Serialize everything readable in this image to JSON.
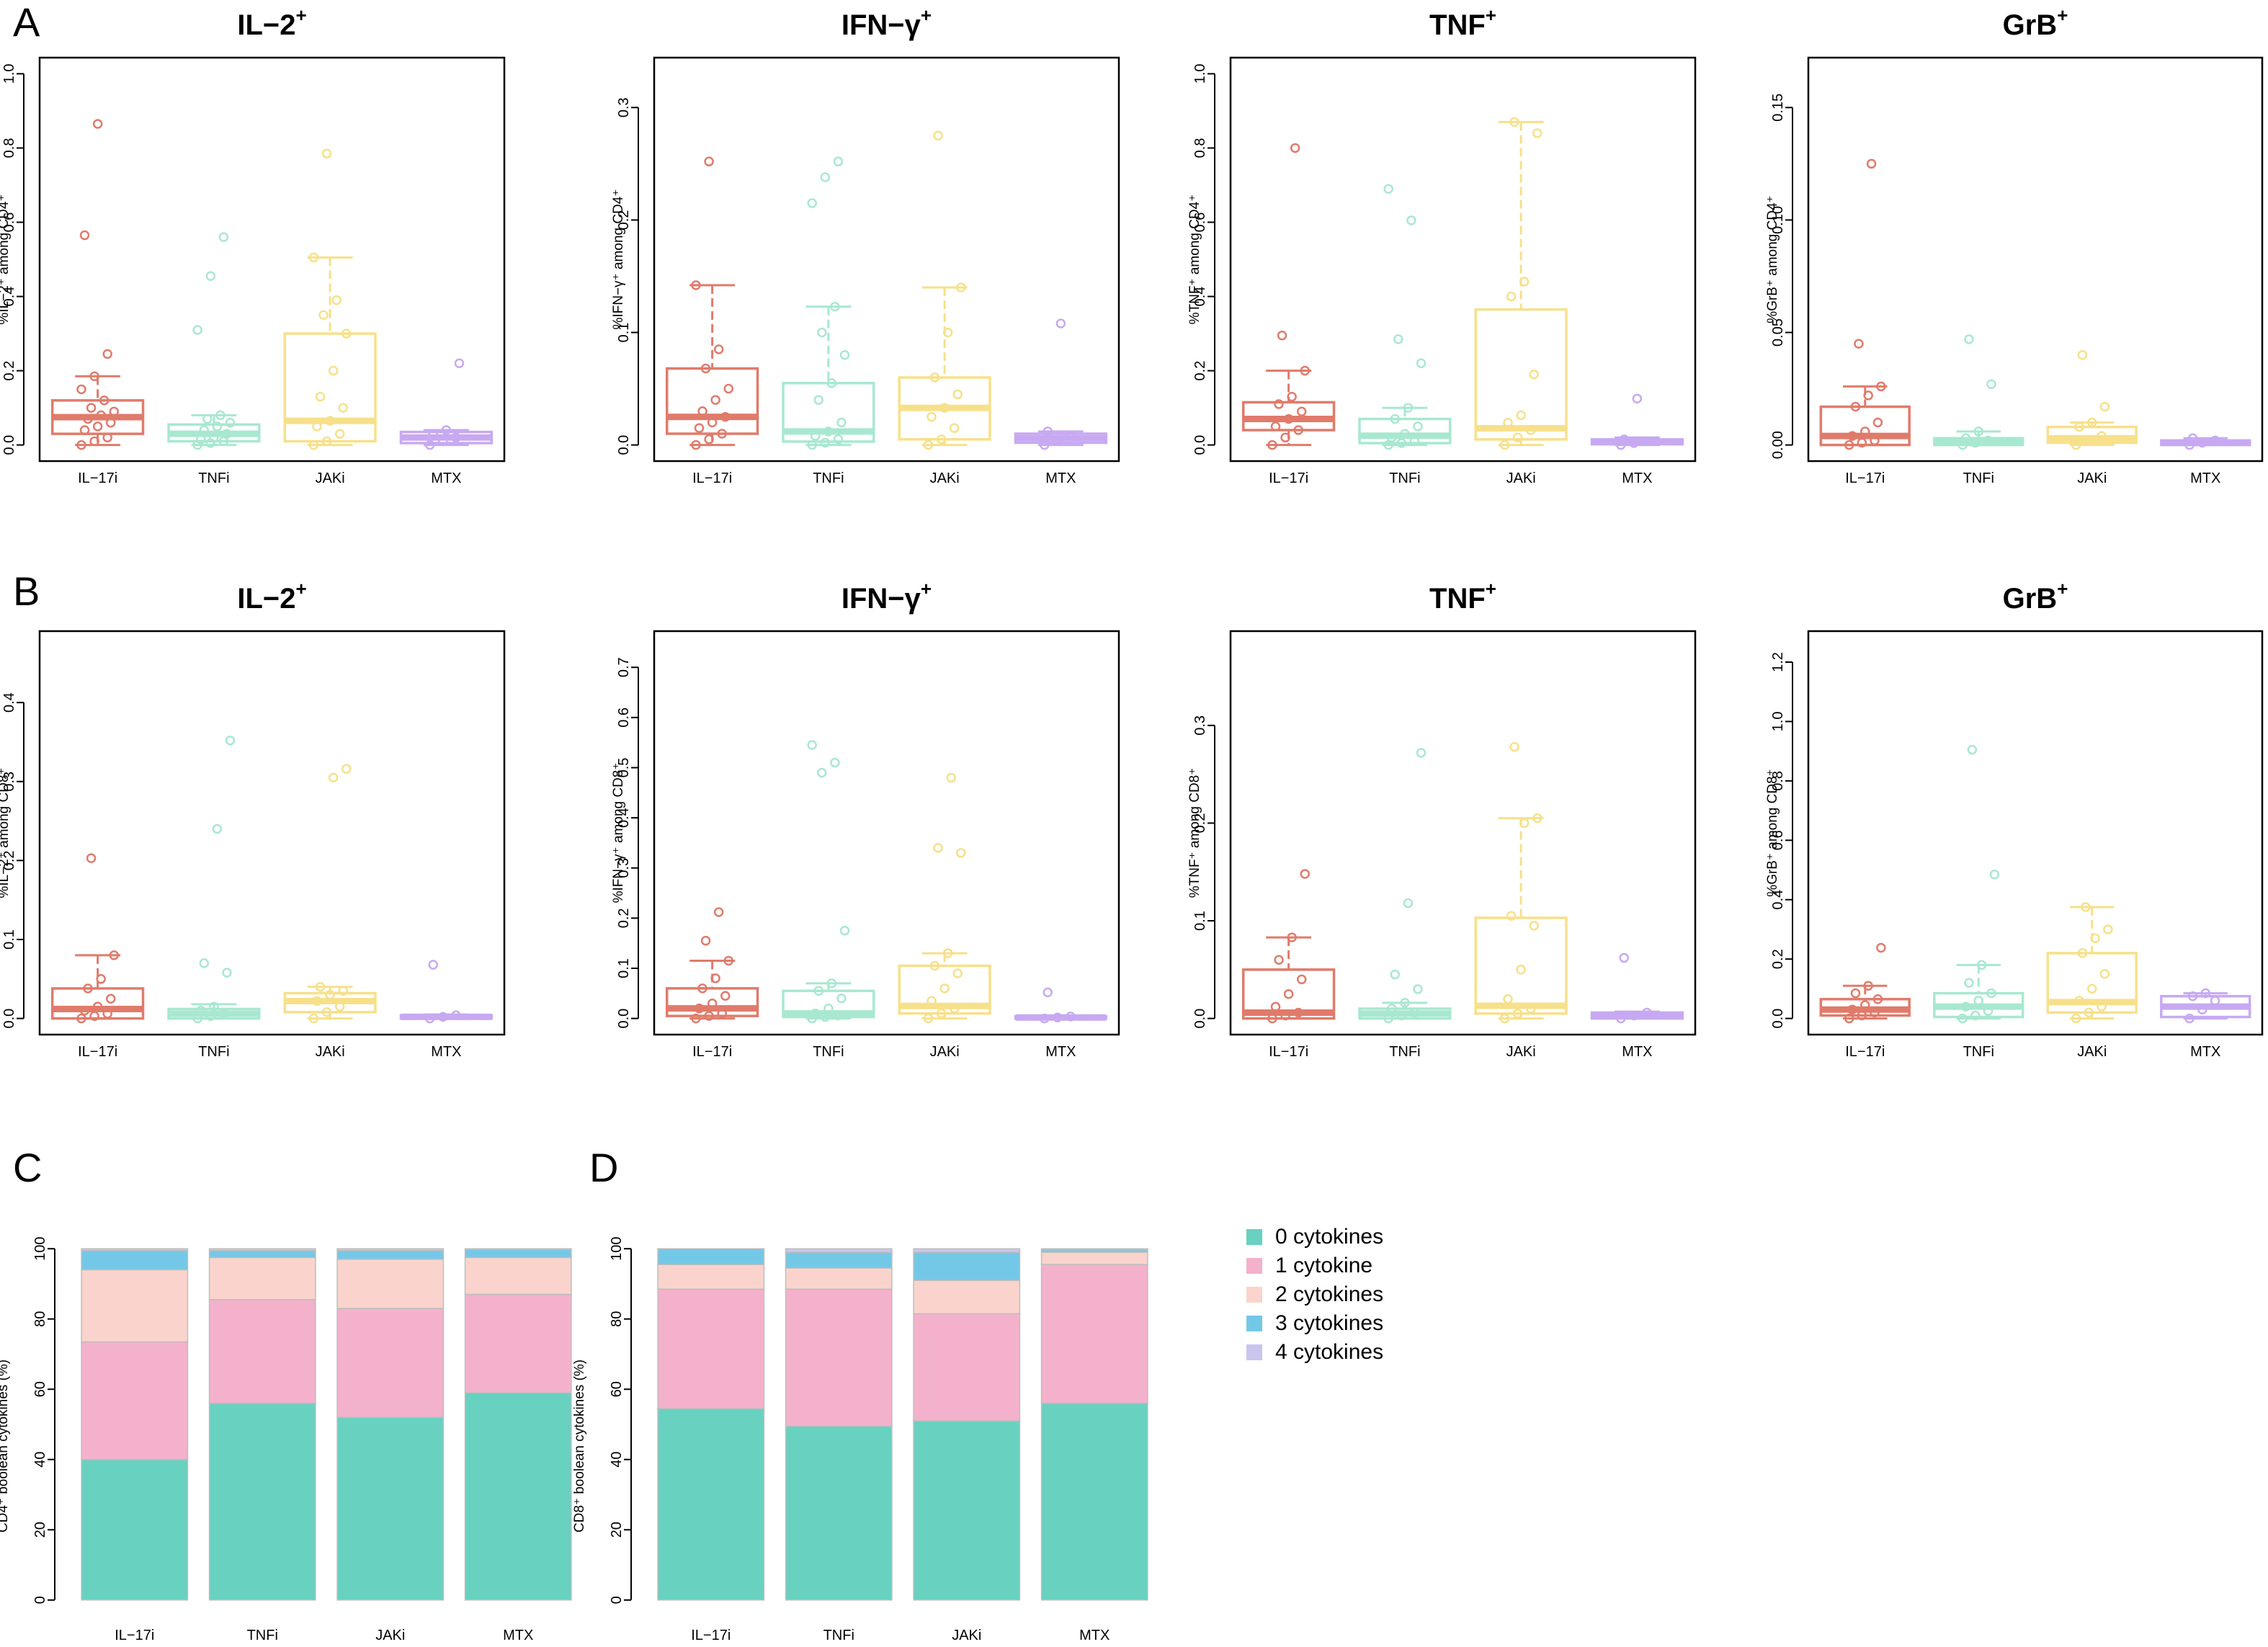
{
  "panel_labels": {
    "A": "A",
    "B": "B",
    "C": "C",
    "D": "D"
  },
  "groups": [
    "IL−17i",
    "TNFi",
    "JAKi",
    "MTX"
  ],
  "colors": {
    "IL−17i": "#E07B6B",
    "TNFi": "#A8E8D0",
    "JAKi": "#F7E08A",
    "MTX": "#C7A9F2"
  },
  "legend": {
    "items": [
      {
        "label": "0 cytokines",
        "color": "#68D1C0"
      },
      {
        "label": "1 cytokine",
        "color": "#F4B1CC"
      },
      {
        "label": "2 cytokines",
        "color": "#FAD4CC"
      },
      {
        "label": "3 cytokines",
        "color": "#74C8E7"
      },
      {
        "label": "4 cytokines",
        "color": "#C9C6EE"
      }
    ]
  },
  "chart_data": [
    {
      "id": "A-IL2",
      "type": "box",
      "panel": "A",
      "title": "IL−2",
      "title_sup": "+",
      "ylabel": "%IL−2⁺ among CD4⁺",
      "ylim": [
        0,
        1.0
      ],
      "ticks": [
        0.0,
        0.2,
        0.4,
        0.6,
        0.8,
        1.0
      ],
      "tick_labels": [
        "0.0",
        "0.2",
        "0.4",
        "0.6",
        "0.8",
        "1.0"
      ],
      "boxes": [
        {
          "group": "IL−17i",
          "q1": 0.03,
          "median": 0.075,
          "q3": 0.12,
          "whisker_low": 0.0,
          "whisker_high": 0.185,
          "points": [
            0.0,
            0.01,
            0.02,
            0.04,
            0.05,
            0.06,
            0.07,
            0.08,
            0.09,
            0.1,
            0.12,
            0.15,
            0.185,
            0.245,
            0.565,
            0.865
          ]
        },
        {
          "group": "TNFi",
          "q1": 0.01,
          "median": 0.03,
          "q3": 0.055,
          "whisker_low": 0.0,
          "whisker_high": 0.08,
          "points": [
            0.0,
            0.005,
            0.01,
            0.015,
            0.02,
            0.03,
            0.04,
            0.05,
            0.06,
            0.07,
            0.08,
            0.31,
            0.455,
            0.56
          ]
        },
        {
          "group": "JAKi",
          "q1": 0.01,
          "median": 0.065,
          "q3": 0.3,
          "whisker_low": 0.0,
          "whisker_high": 0.505,
          "points": [
            0.0,
            0.01,
            0.03,
            0.05,
            0.065,
            0.1,
            0.13,
            0.2,
            0.3,
            0.35,
            0.39,
            0.505,
            0.785
          ]
        },
        {
          "group": "MTX",
          "q1": 0.005,
          "median": 0.02,
          "q3": 0.035,
          "whisker_low": 0.0,
          "whisker_high": 0.04,
          "points": [
            0.0,
            0.01,
            0.02,
            0.03,
            0.04,
            0.22
          ]
        }
      ]
    },
    {
      "id": "A-IFNG",
      "type": "box",
      "panel": "A",
      "title": "IFN−γ",
      "title_sup": "+",
      "ylabel": "%IFN−γ⁺ among CD4⁺",
      "ylim": [
        0,
        0.33
      ],
      "ticks": [
        0.0,
        0.1,
        0.2,
        0.3
      ],
      "tick_labels": [
        "0.0",
        "0.1",
        "0.2",
        "0.3"
      ],
      "boxes": [
        {
          "group": "IL−17i",
          "q1": 0.01,
          "median": 0.025,
          "q3": 0.068,
          "whisker_low": 0.0,
          "whisker_high": 0.142,
          "points": [
            0.0,
            0.005,
            0.01,
            0.015,
            0.02,
            0.025,
            0.03,
            0.04,
            0.05,
            0.068,
            0.085,
            0.142,
            0.252
          ]
        },
        {
          "group": "TNFi",
          "q1": 0.003,
          "median": 0.012,
          "q3": 0.055,
          "whisker_low": 0.0,
          "whisker_high": 0.123,
          "points": [
            0.0,
            0.002,
            0.005,
            0.008,
            0.012,
            0.02,
            0.04,
            0.055,
            0.08,
            0.1,
            0.123,
            0.215,
            0.238,
            0.252
          ]
        },
        {
          "group": "JAKi",
          "q1": 0.005,
          "median": 0.033,
          "q3": 0.06,
          "whisker_low": 0.0,
          "whisker_high": 0.14,
          "points": [
            0.0,
            0.005,
            0.015,
            0.025,
            0.033,
            0.045,
            0.06,
            0.1,
            0.14,
            0.275
          ]
        },
        {
          "group": "MTX",
          "q1": 0.002,
          "median": 0.006,
          "q3": 0.01,
          "whisker_low": 0.0,
          "whisker_high": 0.012,
          "points": [
            0.0,
            0.004,
            0.008,
            0.012,
            0.108
          ]
        }
      ]
    },
    {
      "id": "A-TNF",
      "type": "box",
      "panel": "A",
      "title": "TNF",
      "title_sup": "+",
      "ylabel": "%TNF⁺ among CD4⁺",
      "ylim": [
        0,
        1.0
      ],
      "ticks": [
        0.0,
        0.2,
        0.4,
        0.6,
        0.8,
        1.0
      ],
      "tick_labels": [
        "0.0",
        "0.2",
        "0.4",
        "0.6",
        "0.8",
        "1.0"
      ],
      "boxes": [
        {
          "group": "IL−17i",
          "q1": 0.04,
          "median": 0.07,
          "q3": 0.115,
          "whisker_low": 0.0,
          "whisker_high": 0.2,
          "points": [
            0.0,
            0.02,
            0.04,
            0.05,
            0.07,
            0.09,
            0.11,
            0.13,
            0.2,
            0.295,
            0.8
          ]
        },
        {
          "group": "TNFi",
          "q1": 0.005,
          "median": 0.025,
          "q3": 0.07,
          "whisker_low": 0.0,
          "whisker_high": 0.1,
          "points": [
            0.0,
            0.005,
            0.01,
            0.02,
            0.03,
            0.05,
            0.07,
            0.1,
            0.22,
            0.285,
            0.605,
            0.69
          ]
        },
        {
          "group": "JAKi",
          "q1": 0.015,
          "median": 0.045,
          "q3": 0.365,
          "whisker_low": 0.0,
          "whisker_high": 0.87,
          "points": [
            0.0,
            0.02,
            0.04,
            0.06,
            0.08,
            0.19,
            0.4,
            0.44,
            0.84,
            0.87
          ]
        },
        {
          "group": "MTX",
          "q1": 0.002,
          "median": 0.008,
          "q3": 0.015,
          "whisker_low": 0.0,
          "whisker_high": 0.02,
          "points": [
            0.0,
            0.005,
            0.01,
            0.015,
            0.125
          ]
        }
      ]
    },
    {
      "id": "A-GRB",
      "type": "box",
      "panel": "A",
      "title": "GrB",
      "title_sup": "+",
      "ylabel": "%GrB⁺ among CD4⁺",
      "ylim": [
        0,
        0.165
      ],
      "ticks": [
        0.0,
        0.05,
        0.1,
        0.15
      ],
      "tick_labels": [
        "0.00",
        "0.05",
        "0.10",
        "0.15"
      ],
      "boxes": [
        {
          "group": "IL−17i",
          "q1": 0.0,
          "median": 0.004,
          "q3": 0.017,
          "whisker_low": 0.0,
          "whisker_high": 0.026,
          "points": [
            0.0,
            0.001,
            0.002,
            0.004,
            0.006,
            0.01,
            0.017,
            0.022,
            0.026,
            0.045,
            0.125
          ]
        },
        {
          "group": "TNFi",
          "q1": 0.0,
          "median": 0.001,
          "q3": 0.003,
          "whisker_low": 0.0,
          "whisker_high": 0.006,
          "points": [
            0.0,
            0.001,
            0.002,
            0.003,
            0.006,
            0.027,
            0.047
          ]
        },
        {
          "group": "JAKi",
          "q1": 0.001,
          "median": 0.003,
          "q3": 0.008,
          "whisker_low": 0.0,
          "whisker_high": 0.01,
          "points": [
            0.0,
            0.002,
            0.004,
            0.008,
            0.01,
            0.017,
            0.04
          ]
        },
        {
          "group": "MTX",
          "q1": 0.0,
          "median": 0.001,
          "q3": 0.002,
          "whisker_low": 0.0,
          "whisker_high": 0.003,
          "points": [
            0.0,
            0.001,
            0.002,
            0.003
          ]
        }
      ]
    },
    {
      "id": "B-IL2",
      "type": "box",
      "panel": "B",
      "title": "IL−2",
      "title_sup": "+",
      "ylabel": "%IL−2⁺ among CD8⁺",
      "ylim": [
        0,
        0.47
      ],
      "ticks": [
        0.0,
        0.1,
        0.2,
        0.3,
        0.4
      ],
      "tick_labels": [
        "0.0",
        "0.1",
        "0.2",
        "0.3",
        "0.4"
      ],
      "boxes": [
        {
          "group": "IL−17i",
          "q1": 0.0,
          "median": 0.012,
          "q3": 0.038,
          "whisker_low": 0.0,
          "whisker_high": 0.08,
          "points": [
            0.0,
            0.003,
            0.006,
            0.01,
            0.015,
            0.025,
            0.038,
            0.05,
            0.08,
            0.203
          ]
        },
        {
          "group": "TNFi",
          "q1": 0.0,
          "median": 0.006,
          "q3": 0.012,
          "whisker_low": 0.0,
          "whisker_high": 0.018,
          "points": [
            0.0,
            0.003,
            0.006,
            0.01,
            0.015,
            0.058,
            0.07,
            0.24,
            0.352
          ]
        },
        {
          "group": "JAKi",
          "q1": 0.008,
          "median": 0.022,
          "q3": 0.032,
          "whisker_low": 0.0,
          "whisker_high": 0.04,
          "points": [
            0.0,
            0.008,
            0.015,
            0.022,
            0.03,
            0.035,
            0.04,
            0.305,
            0.316
          ]
        },
        {
          "group": "MTX",
          "q1": 0.0,
          "median": 0.002,
          "q3": 0.004,
          "whisker_low": 0.0,
          "whisker_high": 0.005,
          "points": [
            0.0,
            0.002,
            0.004,
            0.068
          ]
        }
      ]
    },
    {
      "id": "B-IFNG",
      "type": "box",
      "panel": "B",
      "title": "IFN−γ",
      "title_sup": "+",
      "ylabel": "%IFN−γ⁺ among CD8⁺",
      "ylim": [
        0,
        0.74
      ],
      "ticks": [
        0.0,
        0.1,
        0.2,
        0.3,
        0.4,
        0.5,
        0.6,
        0.7
      ],
      "tick_labels": [
        "0.0",
        "0.1",
        "0.2",
        "0.3",
        "0.4",
        "0.5",
        "0.6",
        "0.7"
      ],
      "boxes": [
        {
          "group": "IL−17i",
          "q1": 0.005,
          "median": 0.02,
          "q3": 0.06,
          "whisker_low": 0.0,
          "whisker_high": 0.115,
          "points": [
            0.0,
            0.005,
            0.01,
            0.02,
            0.03,
            0.045,
            0.06,
            0.08,
            0.115,
            0.155,
            0.212
          ]
        },
        {
          "group": "TNFi",
          "q1": 0.003,
          "median": 0.01,
          "q3": 0.055,
          "whisker_low": 0.0,
          "whisker_high": 0.07,
          "points": [
            0.0,
            0.003,
            0.006,
            0.01,
            0.02,
            0.04,
            0.055,
            0.07,
            0.175,
            0.49,
            0.51,
            0.545
          ]
        },
        {
          "group": "JAKi",
          "q1": 0.01,
          "median": 0.025,
          "q3": 0.105,
          "whisker_low": 0.0,
          "whisker_high": 0.13,
          "points": [
            0.0,
            0.01,
            0.02,
            0.035,
            0.06,
            0.09,
            0.105,
            0.13,
            0.33,
            0.34,
            0.48
          ]
        },
        {
          "group": "MTX",
          "q1": 0.0,
          "median": 0.002,
          "q3": 0.004,
          "whisker_low": 0.0,
          "whisker_high": 0.005,
          "points": [
            0.0,
            0.002,
            0.004,
            0.052
          ]
        }
      ]
    },
    {
      "id": "B-TNF",
      "type": "box",
      "panel": "B",
      "title": "TNF",
      "title_sup": "+",
      "ylabel": "%TNF⁺ among CD8⁺",
      "ylim": [
        0,
        0.38
      ],
      "ticks": [
        0.0,
        0.1,
        0.2,
        0.3
      ],
      "tick_labels": [
        "0.0",
        "0.1",
        "0.2",
        "0.3"
      ],
      "boxes": [
        {
          "group": "IL−17i",
          "q1": 0.0,
          "median": 0.006,
          "q3": 0.05,
          "whisker_low": 0.0,
          "whisker_high": 0.083,
          "points": [
            0.0,
            0.003,
            0.006,
            0.012,
            0.025,
            0.04,
            0.06,
            0.083,
            0.148
          ]
        },
        {
          "group": "TNFi",
          "q1": 0.0,
          "median": 0.005,
          "q3": 0.01,
          "whisker_low": 0.0,
          "whisker_high": 0.016,
          "points": [
            0.0,
            0.003,
            0.006,
            0.01,
            0.016,
            0.03,
            0.045,
            0.118,
            0.272
          ]
        },
        {
          "group": "JAKi",
          "q1": 0.005,
          "median": 0.013,
          "q3": 0.103,
          "whisker_low": 0.0,
          "whisker_high": 0.205,
          "points": [
            0.0,
            0.005,
            0.01,
            0.02,
            0.05,
            0.095,
            0.105,
            0.2,
            0.205,
            0.278
          ]
        },
        {
          "group": "MTX",
          "q1": 0.0,
          "median": 0.003,
          "q3": 0.006,
          "whisker_low": 0.0,
          "whisker_high": 0.007,
          "points": [
            0.0,
            0.003,
            0.006,
            0.062
          ]
        }
      ]
    },
    {
      "id": "B-GRB",
      "type": "box",
      "panel": "B",
      "title": "GrB",
      "title_sup": "+",
      "ylabel": "%GrB⁺ among CD8⁺",
      "ylim": [
        0,
        1.25
      ],
      "ticks": [
        0.0,
        0.2,
        0.4,
        0.6,
        0.8,
        1.0,
        1.2
      ],
      "tick_labels": [
        "0.0",
        "0.2",
        "0.4",
        "0.6",
        "0.8",
        "1.0",
        "1.2"
      ],
      "boxes": [
        {
          "group": "IL−17i",
          "q1": 0.01,
          "median": 0.03,
          "q3": 0.065,
          "whisker_low": 0.0,
          "whisker_high": 0.11,
          "points": [
            0.0,
            0.01,
            0.02,
            0.03,
            0.045,
            0.065,
            0.085,
            0.11,
            0.238
          ]
        },
        {
          "group": "TNFi",
          "q1": 0.005,
          "median": 0.04,
          "q3": 0.085,
          "whisker_low": 0.0,
          "whisker_high": 0.18,
          "points": [
            0.0,
            0.01,
            0.025,
            0.04,
            0.06,
            0.085,
            0.12,
            0.18,
            0.485,
            0.905
          ]
        },
        {
          "group": "JAKi",
          "q1": 0.02,
          "median": 0.055,
          "q3": 0.22,
          "whisker_low": 0.0,
          "whisker_high": 0.375,
          "points": [
            0.0,
            0.02,
            0.04,
            0.06,
            0.1,
            0.15,
            0.22,
            0.27,
            0.3,
            0.375
          ]
        },
        {
          "group": "MTX",
          "q1": 0.005,
          "median": 0.04,
          "q3": 0.075,
          "whisker_low": 0.0,
          "whisker_high": 0.085,
          "points": [
            0.0,
            0.03,
            0.06,
            0.075,
            0.085
          ]
        }
      ]
    },
    {
      "id": "C",
      "type": "bar",
      "stacked": true,
      "panel": "C",
      "ylabel": "CD4⁺ boolean cytokines (%)",
      "ylim": [
        0,
        100
      ],
      "ticks": [
        0,
        20,
        40,
        60,
        80,
        100
      ],
      "tick_labels": [
        "0",
        "20",
        "40",
        "60",
        "80",
        "100"
      ],
      "categories": [
        "IL−17i",
        "TNFi",
        "JAKi",
        "MTX"
      ],
      "series": [
        {
          "name": "0 cytokines",
          "values": [
            40,
            56,
            52,
            59
          ]
        },
        {
          "name": "1 cytokine",
          "values": [
            33.5,
            29.5,
            31,
            28
          ]
        },
        {
          "name": "2 cytokines",
          "values": [
            20.5,
            12,
            14,
            10.5
          ]
        },
        {
          "name": "3 cytokines",
          "values": [
            5.5,
            2,
            2.5,
            2.3
          ]
        },
        {
          "name": "4 cytokines",
          "values": [
            0.5,
            0.5,
            0.5,
            0.2
          ]
        }
      ]
    },
    {
      "id": "D",
      "type": "bar",
      "stacked": true,
      "panel": "D",
      "ylabel": "CD8⁺ boolean cytokines (%)",
      "ylim": [
        0,
        100
      ],
      "ticks": [
        0,
        20,
        40,
        60,
        80,
        100
      ],
      "tick_labels": [
        "0",
        "20",
        "40",
        "60",
        "80",
        "100"
      ],
      "categories": [
        "IL−17i",
        "TNFi",
        "JAKi",
        "MTX"
      ],
      "series": [
        {
          "name": "0 cytokines",
          "values": [
            54.5,
            49.5,
            51,
            56
          ]
        },
        {
          "name": "1 cytokine",
          "values": [
            34,
            39,
            30.5,
            39.5
          ]
        },
        {
          "name": "2 cytokines",
          "values": [
            7,
            6,
            9.5,
            3.5
          ]
        },
        {
          "name": "3 cytokines",
          "values": [
            4.5,
            4.5,
            8,
            0.7
          ]
        },
        {
          "name": "4 cytokines",
          "values": [
            0,
            1,
            1,
            0.3
          ]
        }
      ]
    }
  ]
}
